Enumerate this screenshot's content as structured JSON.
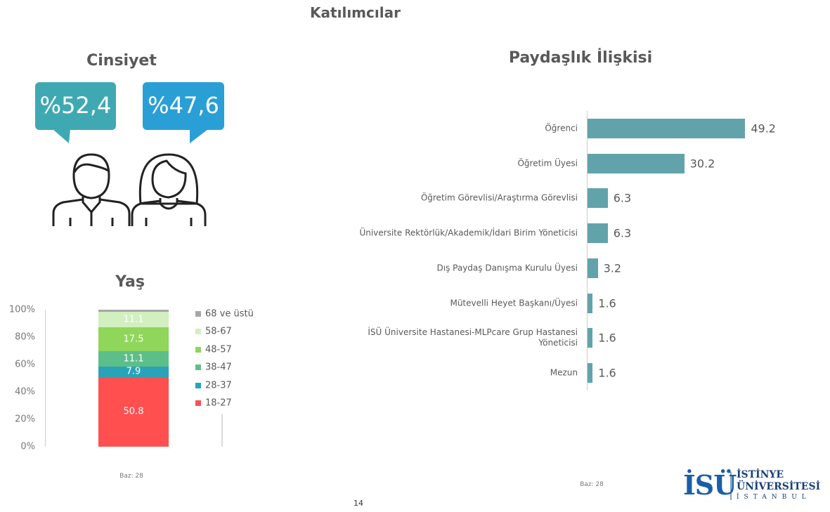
{
  "title": "Katılımcılar",
  "gender": {
    "title": "Cinsiyet",
    "male": "%52,4",
    "female": "%47,6"
  },
  "chart_data": [
    {
      "type": "stacked_bar",
      "title": "Yaş",
      "ylim": [
        0,
        100
      ],
      "yticks": [
        {
          "value": 0,
          "label": "0%"
        },
        {
          "value": 20,
          "label": "20%"
        },
        {
          "value": 40,
          "label": "40%"
        },
        {
          "value": 60,
          "label": "60%"
        },
        {
          "value": 80,
          "label": "80%"
        },
        {
          "value": 100,
          "label": "100%"
        }
      ],
      "series": [
        {
          "name": "18-27",
          "color": "#ff4f4f",
          "values": [
            50.8
          ]
        },
        {
          "name": "28-37",
          "color": "#2aa3b8",
          "values": [
            7.9
          ]
        },
        {
          "name": "38-47",
          "color": "#5cbf8a",
          "values": [
            11.1
          ]
        },
        {
          "name": "48-57",
          "color": "#8fd65a",
          "values": [
            17.5
          ]
        },
        {
          "name": "58-67",
          "color": "#d2efbf",
          "values": [
            11.1
          ]
        },
        {
          "name": "68 ve üstü",
          "color": "#a6a6a6",
          "values": [
            1.6
          ]
        }
      ],
      "note": "Baz: 28"
    },
    {
      "type": "hbar",
      "title": "Paydaşlık İlişkisi",
      "categories": [
        "Öğrenci",
        "Öğretim Üyesi",
        "Öğretim Görevlisi/Araştırma Görevlisi",
        "Üniversite Rektörlük/Akademik/İdari Birim Yöneticisi",
        "Dış Paydaş Danışma Kurulu Üyesi",
        "Mütevelli Heyet Başkanı/Üyesi",
        "İSÜ Üniversite Hastanesi-MLPcare Grup Hastanesi Yöneticisi",
        "Mezun"
      ],
      "values": [
        49.2,
        30.2,
        6.3,
        6.3,
        3.2,
        1.6,
        1.6,
        1.6
      ],
      "color": "#62a3ab",
      "xlim": [
        0,
        50
      ],
      "note": "Baz: 28"
    }
  ],
  "page_number": "14",
  "logo": {
    "mark": "İSÜ",
    "line1": "İSTİNYE",
    "line2": "ÜNİVERSİTESİ",
    "line3": "İSTANBUL"
  }
}
